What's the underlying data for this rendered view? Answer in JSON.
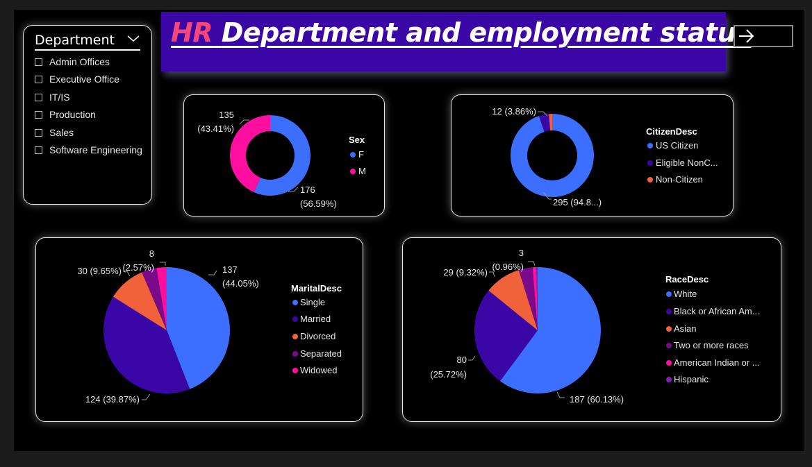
{
  "title": {
    "prefix": "HR",
    "rest": "Department and employment status"
  },
  "slicer": {
    "title": "Department",
    "items": [
      {
        "label": "Admin Offices"
      },
      {
        "label": "Executive Office"
      },
      {
        "label": "IT/IS"
      },
      {
        "label": "Production"
      },
      {
        "label": "Sales"
      },
      {
        "label": "Software Engineering"
      }
    ]
  },
  "colors": {
    "blue": "#3c6eff",
    "purple": "#3a06a6",
    "orange": "#f2623a",
    "dark_magenta": "#7a0a8a",
    "pink": "#ff0fa0",
    "violet": "#8a1eb8"
  },
  "chart_data": [
    {
      "id": "sex",
      "type": "donut",
      "legend_title": "Sex",
      "slices": [
        {
          "name": "F",
          "value": 176,
          "label_value": "176",
          "label_pct": "(56.59%)",
          "color": "#3c6eff"
        },
        {
          "name": "M",
          "value": 135,
          "label_value": "135",
          "label_pct": "(43.41%)",
          "color": "#ff0fa0"
        }
      ]
    },
    {
      "id": "citizen",
      "type": "donut",
      "legend_title": "CitizenDesc",
      "slices": [
        {
          "name": "US Citizen",
          "legend": "US Citizen",
          "value": 295,
          "label": "295 (94.8...)",
          "color": "#3c6eff"
        },
        {
          "name": "Eligible NonCitizen",
          "legend": "Eligible NonC...",
          "value": 12,
          "label": "12 (3.86%)",
          "color": "#3a06a6"
        },
        {
          "name": "Non-Citizen",
          "legend": "Non-Citizen",
          "value": 4,
          "color": "#f2623a"
        }
      ]
    },
    {
      "id": "marital",
      "type": "pie",
      "legend_title": "MaritalDesc",
      "slices": [
        {
          "name": "Single",
          "value": 137,
          "label_value": "137",
          "label_pct": "(44.05%)",
          "color": "#3c6eff"
        },
        {
          "name": "Married",
          "value": 124,
          "label": "124 (39.87%)",
          "color": "#3a06a6"
        },
        {
          "name": "Divorced",
          "value": 30,
          "label": "30 (9.65%)",
          "color": "#f2623a"
        },
        {
          "name": "Separated",
          "value": 12,
          "color": "#7a0a8a"
        },
        {
          "name": "Widowed",
          "value": 8,
          "label_value": "8",
          "label_pct": "(2.57%)",
          "color": "#ff0fa0"
        }
      ]
    },
    {
      "id": "race",
      "type": "pie",
      "legend_title": "RaceDesc",
      "slices": [
        {
          "name": "White",
          "legend": "White",
          "value": 187,
          "label": "187 (60.13%)",
          "color": "#3c6eff"
        },
        {
          "name": "Black or African American",
          "legend": "Black or African Am...",
          "value": 80,
          "label_value": "80",
          "label_pct": "(25.72%)",
          "color": "#3a06a6"
        },
        {
          "name": "Asian",
          "legend": "Asian",
          "value": 29,
          "label": "29 (9.32%)",
          "color": "#f2623a"
        },
        {
          "name": "Two or more races",
          "legend": "Two or more races",
          "value": 11,
          "color": "#7a0a8a"
        },
        {
          "name": "American Indian or Alaska Native",
          "legend": "American Indian or ...",
          "value": 3,
          "label_value": "3",
          "label_pct": "(0.96%)",
          "color": "#ff0fa0"
        },
        {
          "name": "Hispanic",
          "legend": "Hispanic",
          "value": 1,
          "color": "#8a1eb8"
        }
      ]
    }
  ]
}
